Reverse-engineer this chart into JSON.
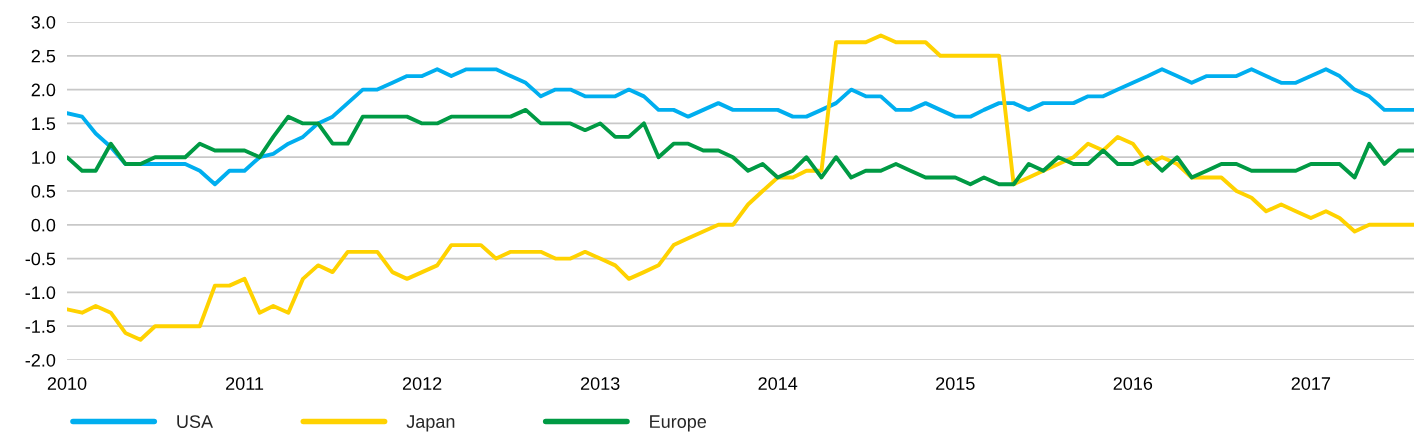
{
  "chart_data": {
    "type": "line",
    "x": [
      "2010-01",
      "2010-02",
      "2010-03",
      "2010-04",
      "2010-05",
      "2010-06",
      "2010-07",
      "2010-08",
      "2010-09",
      "2010-10",
      "2010-11",
      "2010-12",
      "2011-01",
      "2011-02",
      "2011-03",
      "2011-04",
      "2011-05",
      "2011-06",
      "2011-07",
      "2011-08",
      "2011-09",
      "2011-10",
      "2011-11",
      "2011-12",
      "2012-01",
      "2012-02",
      "2012-03",
      "2012-04",
      "2012-05",
      "2012-06",
      "2012-07",
      "2012-08",
      "2012-09",
      "2012-10",
      "2012-11",
      "2012-12",
      "2013-01",
      "2013-02",
      "2013-03",
      "2013-04",
      "2013-05",
      "2013-06",
      "2013-07",
      "2013-08",
      "2013-09",
      "2013-10",
      "2013-11",
      "2013-12",
      "2014-01",
      "2014-02",
      "2014-03",
      "2014-04",
      "2014-05",
      "2014-06",
      "2014-07",
      "2014-08",
      "2014-09",
      "2014-10",
      "2014-11",
      "2014-12",
      "2015-01",
      "2015-02",
      "2015-03",
      "2015-04",
      "2015-05",
      "2015-06",
      "2015-07",
      "2015-08",
      "2015-09",
      "2015-10",
      "2015-11",
      "2015-12",
      "2016-01",
      "2016-02",
      "2016-03",
      "2016-04",
      "2016-05",
      "2016-06",
      "2016-07",
      "2016-08",
      "2016-09",
      "2016-10",
      "2016-11",
      "2016-12",
      "2017-01",
      "2017-02",
      "2017-03",
      "2017-04",
      "2017-05",
      "2017-06",
      "2017-07",
      "2017-08"
    ],
    "xlim": [
      "2010-01",
      "2017-08"
    ],
    "xticks": [
      "2010",
      "2011",
      "2012",
      "2013",
      "2014",
      "2015",
      "2016",
      "2017"
    ],
    "ylim": [
      -2,
      3
    ],
    "yticks": [
      {
        "value": -2,
        "label": "-2.0"
      },
      {
        "value": -1.5,
        "label": "-1.5"
      },
      {
        "value": -1,
        "label": "-1.0"
      },
      {
        "value": -0.5,
        "label": "-0.5"
      },
      {
        "value": 0,
        "label": "0.0"
      },
      {
        "value": 0.5,
        "label": "0.5"
      },
      {
        "value": 1,
        "label": "1.0"
      },
      {
        "value": 1.5,
        "label": "1.5"
      },
      {
        "value": 2,
        "label": "2.0"
      },
      {
        "value": 2.5,
        "label": "2.5"
      },
      {
        "value": 3,
        "label": "3.0"
      }
    ],
    "grid": "y",
    "legend": "bottom",
    "marker": "none",
    "line_style": "solid",
    "series": [
      {
        "name": "USA",
        "color": "#00aeef",
        "values": [
          1.65,
          1.6,
          1.35,
          1.15,
          0.9,
          0.9,
          0.9,
          0.9,
          0.9,
          0.8,
          0.6,
          0.8,
          0.8,
          1.0,
          1.05,
          1.2,
          1.3,
          1.5,
          1.6,
          1.8,
          2.0,
          2.0,
          2.1,
          2.2,
          2.2,
          2.3,
          2.2,
          2.3,
          2.3,
          2.3,
          2.2,
          2.1,
          1.9,
          2.0,
          2.0,
          1.9,
          1.9,
          1.9,
          2.0,
          1.9,
          1.7,
          1.7,
          1.6,
          1.7,
          1.8,
          1.7,
          1.7,
          1.7,
          1.7,
          1.6,
          1.6,
          1.7,
          1.8,
          2.0,
          1.9,
          1.9,
          1.7,
          1.7,
          1.8,
          1.7,
          1.6,
          1.6,
          1.7,
          1.8,
          1.8,
          1.7,
          1.8,
          1.8,
          1.8,
          1.9,
          1.9,
          2.0,
          2.1,
          2.2,
          2.3,
          2.2,
          2.1,
          2.2,
          2.2,
          2.2,
          2.3,
          2.2,
          2.1,
          2.1,
          2.2,
          2.3,
          2.2,
          2.0,
          1.9,
          1.7,
          1.7,
          1.7
        ]
      },
      {
        "name": "Japan",
        "color": "#ffd200",
        "values": [
          -1.25,
          -1.3,
          -1.2,
          -1.3,
          -1.6,
          -1.7,
          -1.5,
          -1.5,
          -1.5,
          -1.5,
          -0.9,
          -0.9,
          -0.8,
          -1.3,
          -1.2,
          -1.3,
          -0.8,
          -0.6,
          -0.7,
          -0.4,
          -0.4,
          -0.4,
          -0.7,
          -0.8,
          -0.7,
          -0.6,
          -0.3,
          -0.3,
          -0.3,
          -0.5,
          -0.4,
          -0.4,
          -0.4,
          -0.5,
          -0.5,
          -0.4,
          -0.5,
          -0.6,
          -0.8,
          -0.7,
          -0.6,
          -0.3,
          -0.2,
          -0.1,
          0.0,
          0.0,
          0.3,
          0.5,
          0.7,
          0.7,
          0.8,
          0.8,
          2.7,
          2.7,
          2.7,
          2.8,
          2.7,
          2.7,
          2.7,
          2.5,
          2.5,
          2.5,
          2.5,
          2.5,
          0.6,
          0.7,
          0.8,
          0.9,
          1.0,
          1.2,
          1.1,
          1.3,
          1.2,
          0.9,
          1.0,
          0.9,
          0.7,
          0.7,
          0.7,
          0.5,
          0.4,
          0.2,
          0.3,
          0.2,
          0.1,
          0.2,
          0.1,
          -0.1,
          0.0,
          0.0,
          0.0,
          0.0
        ]
      },
      {
        "name": "Europe",
        "color": "#009a44",
        "values": [
          1.0,
          0.8,
          0.8,
          1.2,
          0.9,
          0.9,
          1.0,
          1.0,
          1.0,
          1.2,
          1.1,
          1.1,
          1.1,
          1.0,
          1.3,
          1.6,
          1.5,
          1.5,
          1.2,
          1.2,
          1.6,
          1.6,
          1.6,
          1.6,
          1.5,
          1.5,
          1.6,
          1.6,
          1.6,
          1.6,
          1.6,
          1.7,
          1.5,
          1.5,
          1.5,
          1.4,
          1.5,
          1.3,
          1.3,
          1.5,
          1.0,
          1.2,
          1.2,
          1.1,
          1.1,
          1.0,
          0.8,
          0.9,
          0.7,
          0.8,
          1.0,
          0.7,
          1.0,
          0.7,
          0.8,
          0.8,
          0.9,
          0.8,
          0.7,
          0.7,
          0.7,
          0.6,
          0.7,
          0.6,
          0.6,
          0.9,
          0.8,
          1.0,
          0.9,
          0.9,
          1.1,
          0.9,
          0.9,
          1.0,
          0.8,
          1.0,
          0.7,
          0.8,
          0.9,
          0.9,
          0.8,
          0.8,
          0.8,
          0.8,
          0.9,
          0.9,
          0.9,
          0.7,
          1.2,
          0.9,
          1.1,
          1.1
        ]
      }
    ]
  }
}
